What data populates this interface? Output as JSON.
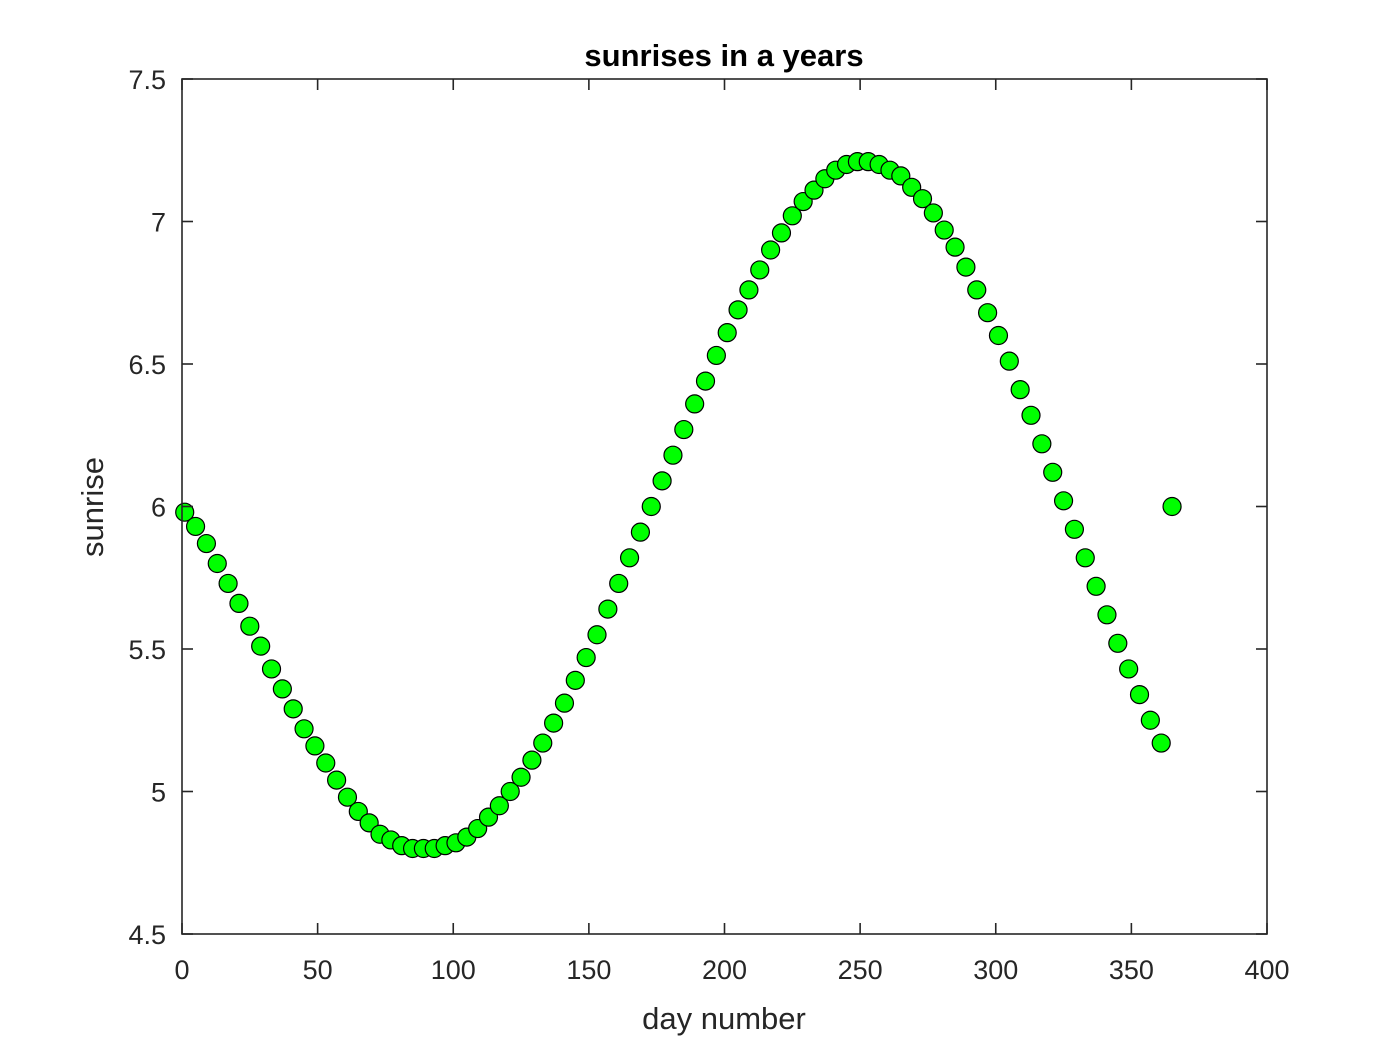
{
  "chart_data": {
    "type": "scatter",
    "title": "sunrises in a years",
    "xlabel": "day number",
    "ylabel": "sunrise",
    "xlim": [
      0,
      400
    ],
    "ylim": [
      4.5,
      7.5
    ],
    "x_ticks": [
      "0",
      "50",
      "100",
      "150",
      "200",
      "250",
      "300",
      "350",
      "400"
    ],
    "y_ticks": [
      "4.5",
      "5",
      "5.5",
      "6",
      "6.5",
      "7",
      "7.5"
    ],
    "grid": false,
    "legend": "none",
    "marker": "circle",
    "marker_face_color": "#00ff00",
    "marker_edge_color": "#000000",
    "series": [
      {
        "x": [
          1,
          5,
          9,
          13,
          17,
          21,
          25,
          29,
          33,
          37,
          41,
          45,
          49,
          53,
          57,
          61,
          65,
          69,
          73,
          77,
          81,
          85,
          89,
          93,
          97,
          101,
          105,
          109,
          113,
          117,
          121,
          125,
          129,
          133,
          137,
          141,
          145,
          149,
          153,
          157,
          161,
          165,
          169,
          173,
          177,
          181,
          185,
          189,
          193,
          197,
          201,
          205,
          209,
          213,
          217,
          221,
          225,
          229,
          233,
          237,
          241,
          245,
          249,
          253,
          257,
          261,
          265,
          269,
          273,
          277,
          281,
          285,
          289,
          293,
          297,
          301,
          305,
          309,
          313,
          317,
          321,
          325,
          329,
          333,
          337,
          341,
          345,
          349,
          353,
          357,
          361,
          365
        ],
        "y": [
          5.98,
          5.93,
          5.87,
          5.8,
          5.73,
          5.66,
          5.58,
          5.51,
          5.43,
          5.36,
          5.29,
          5.22,
          5.16,
          5.1,
          5.04,
          4.98,
          4.93,
          4.89,
          4.85,
          4.83,
          4.81,
          4.8,
          4.8,
          4.8,
          4.81,
          4.82,
          4.84,
          4.87,
          4.91,
          4.95,
          5,
          5.05,
          5.11,
          5.17,
          5.24,
          5.31,
          5.39,
          5.47,
          5.55,
          5.64,
          5.73,
          5.82,
          5.91,
          6,
          6.09,
          6.18,
          6.27,
          6.36,
          6.44,
          6.53,
          6.61,
          6.69,
          6.76,
          6.83,
          6.9,
          6.96,
          7.02,
          7.07,
          7.11,
          7.15,
          7.18,
          7.2,
          7.21,
          7.21,
          7.2,
          7.18,
          7.16,
          7.12,
          7.08,
          7.03,
          6.97,
          6.91,
          6.84,
          6.76,
          6.68,
          6.6,
          6.51,
          6.41,
          6.32,
          6.22,
          6.12,
          6.02,
          5.92,
          5.82,
          5.72,
          5.62,
          5.52,
          5.43,
          5.34,
          5.25,
          5.17,
          6.0
        ]
      }
    ]
  }
}
